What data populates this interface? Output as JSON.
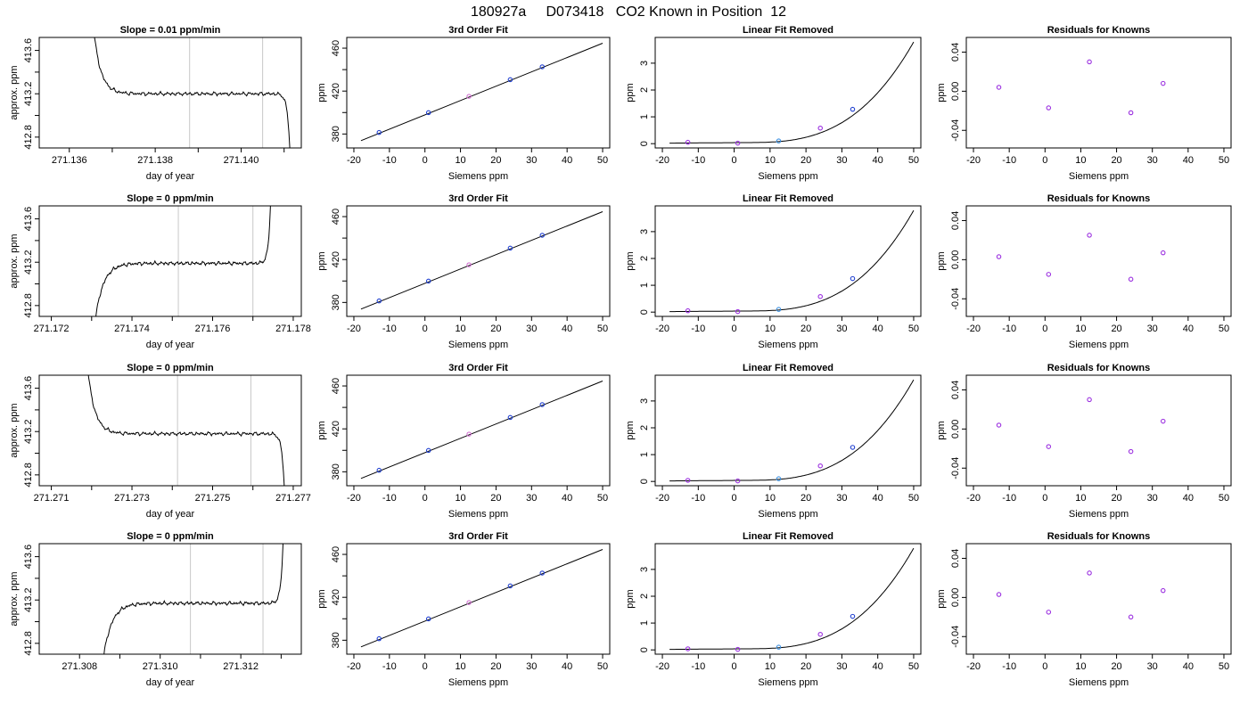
{
  "figure": {
    "title": "180927a     D073418   CO2 Known in Position  12"
  },
  "colors": {
    "line": "#000000",
    "vline": "#c8c8c8",
    "point_blue": "#1f3fd0",
    "point_purple": "#9b30e0",
    "point_lightblue": "#3a8fe0",
    "point_magenta": "#d070d0"
  },
  "chart_data": [
    {
      "type": "line",
      "row": 1,
      "col": 1,
      "title": "Slope =  0.01  ppm/min",
      "xlabel": "day of year",
      "ylabel": "approx. ppm",
      "xlim": [
        271.1353,
        271.1414
      ],
      "ylim": [
        412.7,
        413.72
      ],
      "xticks": [
        271.136,
        271.137,
        271.138,
        271.139,
        271.14,
        271.141
      ],
      "xticklabels": [
        "271.136",
        "",
        "271.138",
        "",
        "271.140",
        ""
      ],
      "yticks": [
        412.8,
        413.0,
        413.2,
        413.4,
        413.6
      ],
      "yticklabels": [
        "412.8",
        "",
        "413.2",
        "",
        "413.6"
      ],
      "vlines": [
        271.1388,
        271.1405
      ],
      "trace": {
        "x_start": 271.13645,
        "x_end": 271.14117,
        "plateau": 413.2,
        "rise": "start_high",
        "edge": "end_drop"
      }
    },
    {
      "type": "scatter",
      "row": 1,
      "col": 2,
      "title": "3rd Order Fit",
      "xlabel": "Siemens ppm",
      "ylabel": "ppm",
      "xlim": [
        -22,
        52
      ],
      "ylim": [
        367,
        470
      ],
      "xticks": [
        -20,
        -10,
        0,
        10,
        20,
        30,
        40,
        50
      ],
      "yticks": [
        380,
        400,
        420,
        440,
        460
      ],
      "yticklabels": [
        "380",
        "",
        "420",
        "",
        "460"
      ],
      "fit_line": {
        "x": [
          -18,
          50
        ],
        "y": [
          373.8,
          464.6
        ]
      },
      "points": {
        "x": [
          -12.9,
          1.0,
          12.4,
          24.0,
          33.0
        ],
        "y": [
          381.4,
          399.9,
          415.1,
          430.6,
          442.6
        ],
        "colors": [
          "#1f3fd0",
          "#1f3fd0",
          "#d070d0",
          "#1f3fd0",
          "#1f3fd0"
        ]
      }
    },
    {
      "type": "scatter",
      "row": 1,
      "col": 3,
      "title": "Linear Fit Removed",
      "xlabel": "Siemens ppm",
      "ylabel": "ppm",
      "xlim": [
        -22,
        52
      ],
      "ylim": [
        -0.16,
        3.96
      ],
      "xticks": [
        -20,
        -10,
        0,
        10,
        20,
        30,
        40,
        50
      ],
      "yticks": [
        0,
        1,
        2,
        3
      ],
      "curve": {
        "x0": -18,
        "x1": 50,
        "base": 0.04,
        "scale": 3.75
      },
      "points": {
        "x": [
          -12.9,
          1.0,
          12.4,
          24.0,
          33.0
        ],
        "y": [
          0.05,
          0.02,
          0.1,
          0.58,
          1.28
        ],
        "colors": [
          "#9b30e0",
          "#9b30e0",
          "#3a8fe0",
          "#9b30e0",
          "#1f3fd0"
        ]
      }
    },
    {
      "type": "scatter",
      "row": 1,
      "col": 4,
      "title": "Residuals for Knowns",
      "xlabel": "Siemens ppm",
      "ylabel": "ppm",
      "xlim": [
        -22,
        52
      ],
      "ylim": [
        -0.058,
        0.055
      ],
      "xticks": [
        -20,
        -10,
        0,
        10,
        20,
        30,
        40,
        50
      ],
      "yticks": [
        -0.04,
        0.0,
        0.04
      ],
      "yticklabels": [
        "-0.04",
        "0.00",
        "0.04"
      ],
      "points": {
        "x": [
          -12.9,
          1.0,
          12.4,
          24.0,
          33.0
        ],
        "y": [
          0.004,
          -0.017,
          0.03,
          -0.022,
          0.008
        ],
        "colors": [
          "#9b30e0",
          "#9b30e0",
          "#9b30e0",
          "#9b30e0",
          "#9b30e0"
        ]
      }
    },
    {
      "type": "line",
      "row": 2,
      "col": 1,
      "title": "Slope =  0  ppm/min",
      "xlabel": "day of year",
      "ylabel": "approx. ppm",
      "xlim": [
        271.1717,
        271.1782
      ],
      "ylim": [
        412.7,
        413.72
      ],
      "xticks": [
        271.172,
        271.173,
        271.174,
        271.175,
        271.176,
        271.177,
        271.178
      ],
      "xticklabels": [
        "271.172",
        "",
        "271.174",
        "",
        "271.176",
        "",
        "271.178"
      ],
      "yticks": [
        412.8,
        413.0,
        413.2,
        413.4,
        413.6
      ],
      "yticklabels": [
        "412.8",
        "",
        "413.2",
        "",
        "413.6"
      ],
      "vlines": [
        271.17515,
        271.177
      ],
      "trace": {
        "x_start": 271.17298,
        "x_end": 271.17747,
        "plateau": 413.19,
        "rise": "start_low",
        "edge": "end_rise"
      }
    },
    {
      "type": "scatter",
      "row": 2,
      "col": 2,
      "title": "3rd Order Fit",
      "xlabel": "Siemens ppm",
      "ylabel": "ppm",
      "xlim": [
        -22,
        52
      ],
      "ylim": [
        367,
        470
      ],
      "xticks": [
        -20,
        -10,
        0,
        10,
        20,
        30,
        40,
        50
      ],
      "yticks": [
        380,
        400,
        420,
        440,
        460
      ],
      "yticklabels": [
        "380",
        "",
        "420",
        "",
        "460"
      ],
      "fit_line": {
        "x": [
          -18,
          50
        ],
        "y": [
          373.8,
          464.6
        ]
      },
      "points": {
        "x": [
          -12.9,
          1.0,
          12.4,
          24.0,
          33.0
        ],
        "y": [
          381.4,
          399.9,
          415.1,
          430.6,
          442.6
        ],
        "colors": [
          "#1f3fd0",
          "#1f3fd0",
          "#d070d0",
          "#1f3fd0",
          "#1f3fd0"
        ]
      }
    },
    {
      "type": "scatter",
      "row": 2,
      "col": 3,
      "title": "Linear Fit Removed",
      "xlabel": "Siemens ppm",
      "ylabel": "ppm",
      "xlim": [
        -22,
        52
      ],
      "ylim": [
        -0.16,
        3.96
      ],
      "xticks": [
        -20,
        -10,
        0,
        10,
        20,
        30,
        40,
        50
      ],
      "yticks": [
        0,
        1,
        2,
        3
      ],
      "curve": {
        "x0": -18,
        "x1": 50,
        "base": 0.04,
        "scale": 3.75
      },
      "points": {
        "x": [
          -12.9,
          1.0,
          12.4,
          24.0,
          33.0
        ],
        "y": [
          0.05,
          0.02,
          0.1,
          0.58,
          1.25
        ],
        "colors": [
          "#9b30e0",
          "#9b30e0",
          "#3a8fe0",
          "#9b30e0",
          "#1f3fd0"
        ]
      }
    },
    {
      "type": "scatter",
      "row": 2,
      "col": 4,
      "title": "Residuals for Knowns",
      "xlabel": "Siemens ppm",
      "ylabel": "ppm",
      "xlim": [
        -22,
        52
      ],
      "ylim": [
        -0.058,
        0.055
      ],
      "xticks": [
        -20,
        -10,
        0,
        10,
        20,
        30,
        40,
        50
      ],
      "yticks": [
        -0.04,
        0.0,
        0.04
      ],
      "yticklabels": [
        "-0.04",
        "0.00",
        "0.04"
      ],
      "points": {
        "x": [
          -12.9,
          1.0,
          12.4,
          24.0,
          33.0
        ],
        "y": [
          0.003,
          -0.015,
          0.025,
          -0.02,
          0.007
        ],
        "colors": [
          "#9b30e0",
          "#9b30e0",
          "#9b30e0",
          "#9b30e0",
          "#9b30e0"
        ]
      }
    },
    {
      "type": "line",
      "row": 3,
      "col": 1,
      "title": "Slope =  0  ppm/min",
      "xlabel": "day of year",
      "ylabel": "approx. ppm",
      "xlim": [
        271.2707,
        271.2772
      ],
      "ylim": [
        412.7,
        413.72
      ],
      "xticks": [
        271.271,
        271.272,
        271.273,
        271.274,
        271.275,
        271.276,
        271.277
      ],
      "xticklabels": [
        "271.271",
        "",
        "271.273",
        "",
        "271.275",
        "",
        "271.277"
      ],
      "yticks": [
        412.8,
        413.0,
        413.2,
        413.4,
        413.6
      ],
      "yticklabels": [
        "412.8",
        "",
        "413.2",
        "",
        "413.6"
      ],
      "vlines": [
        271.27413,
        271.27595
      ],
      "trace": {
        "x_start": 271.27178,
        "x_end": 271.27682,
        "plateau": 413.18,
        "rise": "start_high",
        "edge": "end_drop"
      }
    },
    {
      "type": "scatter",
      "row": 3,
      "col": 2,
      "title": "3rd Order Fit",
      "xlabel": "Siemens ppm",
      "ylabel": "ppm",
      "xlim": [
        -22,
        52
      ],
      "ylim": [
        367,
        470
      ],
      "xticks": [
        -20,
        -10,
        0,
        10,
        20,
        30,
        40,
        50
      ],
      "yticks": [
        380,
        400,
        420,
        440,
        460
      ],
      "yticklabels": [
        "380",
        "",
        "420",
        "",
        "460"
      ],
      "fit_line": {
        "x": [
          -18,
          50
        ],
        "y": [
          373.8,
          464.6
        ]
      },
      "points": {
        "x": [
          -12.9,
          1.0,
          12.4,
          24.0,
          33.0
        ],
        "y": [
          381.4,
          399.9,
          415.1,
          430.6,
          442.6
        ],
        "colors": [
          "#1f3fd0",
          "#1f3fd0",
          "#d070d0",
          "#1f3fd0",
          "#1f3fd0"
        ]
      }
    },
    {
      "type": "scatter",
      "row": 3,
      "col": 3,
      "title": "Linear Fit Removed",
      "xlabel": "Siemens ppm",
      "ylabel": "ppm",
      "xlim": [
        -22,
        52
      ],
      "ylim": [
        -0.16,
        3.96
      ],
      "xticks": [
        -20,
        -10,
        0,
        10,
        20,
        30,
        40,
        50
      ],
      "yticks": [
        0,
        1,
        2,
        3
      ],
      "curve": {
        "x0": -18,
        "x1": 50,
        "base": 0.04,
        "scale": 3.75
      },
      "points": {
        "x": [
          -12.9,
          1.0,
          12.4,
          24.0,
          33.0
        ],
        "y": [
          0.04,
          0.02,
          0.1,
          0.58,
          1.27
        ],
        "colors": [
          "#9b30e0",
          "#9b30e0",
          "#3a8fe0",
          "#9b30e0",
          "#1f3fd0"
        ]
      }
    },
    {
      "type": "scatter",
      "row": 3,
      "col": 4,
      "title": "Residuals for Knowns",
      "xlabel": "Siemens ppm",
      "ylabel": "ppm",
      "xlim": [
        -22,
        52
      ],
      "ylim": [
        -0.058,
        0.055
      ],
      "xticks": [
        -20,
        -10,
        0,
        10,
        20,
        30,
        40,
        50
      ],
      "yticks": [
        -0.04,
        0.0,
        0.04
      ],
      "yticklabels": [
        "-0.04",
        "0.00",
        "0.04"
      ],
      "points": {
        "x": [
          -12.9,
          1.0,
          12.4,
          24.0,
          33.0
        ],
        "y": [
          0.004,
          -0.018,
          0.03,
          -0.023,
          0.008
        ],
        "colors": [
          "#9b30e0",
          "#9b30e0",
          "#9b30e0",
          "#9b30e0",
          "#9b30e0"
        ]
      }
    },
    {
      "type": "line",
      "row": 4,
      "col": 1,
      "title": "Slope =  0  ppm/min",
      "xlabel": "day of year",
      "ylabel": "approx. ppm",
      "xlim": [
        271.307,
        271.3135
      ],
      "ylim": [
        412.7,
        413.72
      ],
      "xticks": [
        271.308,
        271.309,
        271.31,
        271.311,
        271.312,
        271.313
      ],
      "xticklabels": [
        "271.308",
        "",
        "271.310",
        "",
        "271.312",
        ""
      ],
      "yticks": [
        412.8,
        413.0,
        413.2,
        413.4,
        413.6
      ],
      "yticklabels": [
        "412.8",
        "",
        "413.2",
        "",
        "413.6"
      ],
      "vlines": [
        271.31075,
        271.31255
      ],
      "trace": {
        "x_start": 271.30847,
        "x_end": 271.31308,
        "plateau": 413.17,
        "rise": "start_low",
        "edge": "end_rise"
      }
    },
    {
      "type": "scatter",
      "row": 4,
      "col": 2,
      "title": "3rd Order Fit",
      "xlabel": "Siemens ppm",
      "ylabel": "ppm",
      "xlim": [
        -22,
        52
      ],
      "ylim": [
        367,
        470
      ],
      "xticks": [
        -20,
        -10,
        0,
        10,
        20,
        30,
        40,
        50
      ],
      "yticks": [
        380,
        400,
        420,
        440,
        460
      ],
      "yticklabels": [
        "380",
        "",
        "420",
        "",
        "460"
      ],
      "fit_line": {
        "x": [
          -18,
          50
        ],
        "y": [
          373.8,
          464.6
        ]
      },
      "points": {
        "x": [
          -12.9,
          1.0,
          12.4,
          24.0,
          33.0
        ],
        "y": [
          381.4,
          399.9,
          415.1,
          430.6,
          442.6
        ],
        "colors": [
          "#1f3fd0",
          "#1f3fd0",
          "#d070d0",
          "#1f3fd0",
          "#1f3fd0"
        ]
      }
    },
    {
      "type": "scatter",
      "row": 4,
      "col": 3,
      "title": "Linear Fit Removed",
      "xlabel": "Siemens ppm",
      "ylabel": "ppm",
      "xlim": [
        -22,
        52
      ],
      "ylim": [
        -0.16,
        3.96
      ],
      "xticks": [
        -20,
        -10,
        0,
        10,
        20,
        30,
        40,
        50
      ],
      "yticks": [
        0,
        1,
        2,
        3
      ],
      "curve": {
        "x0": -18,
        "x1": 50,
        "base": 0.04,
        "scale": 3.75
      },
      "points": {
        "x": [
          -12.9,
          1.0,
          12.4,
          24.0,
          33.0
        ],
        "y": [
          0.04,
          0.02,
          0.1,
          0.58,
          1.25
        ],
        "colors": [
          "#9b30e0",
          "#9b30e0",
          "#3a8fe0",
          "#9b30e0",
          "#1f3fd0"
        ]
      }
    },
    {
      "type": "scatter",
      "row": 4,
      "col": 4,
      "title": "Residuals for Knowns",
      "xlabel": "Siemens ppm",
      "ylabel": "ppm",
      "xlim": [
        -22,
        52
      ],
      "ylim": [
        -0.058,
        0.055
      ],
      "xticks": [
        -20,
        -10,
        0,
        10,
        20,
        30,
        40,
        50
      ],
      "yticks": [
        -0.04,
        0.0,
        0.04
      ],
      "yticklabels": [
        "-0.04",
        "0.00",
        "0.04"
      ],
      "points": {
        "x": [
          -12.9,
          1.0,
          12.4,
          24.0,
          33.0
        ],
        "y": [
          0.003,
          -0.015,
          0.025,
          -0.02,
          0.007
        ],
        "colors": [
          "#9b30e0",
          "#9b30e0",
          "#9b30e0",
          "#9b30e0",
          "#9b30e0"
        ]
      }
    }
  ]
}
